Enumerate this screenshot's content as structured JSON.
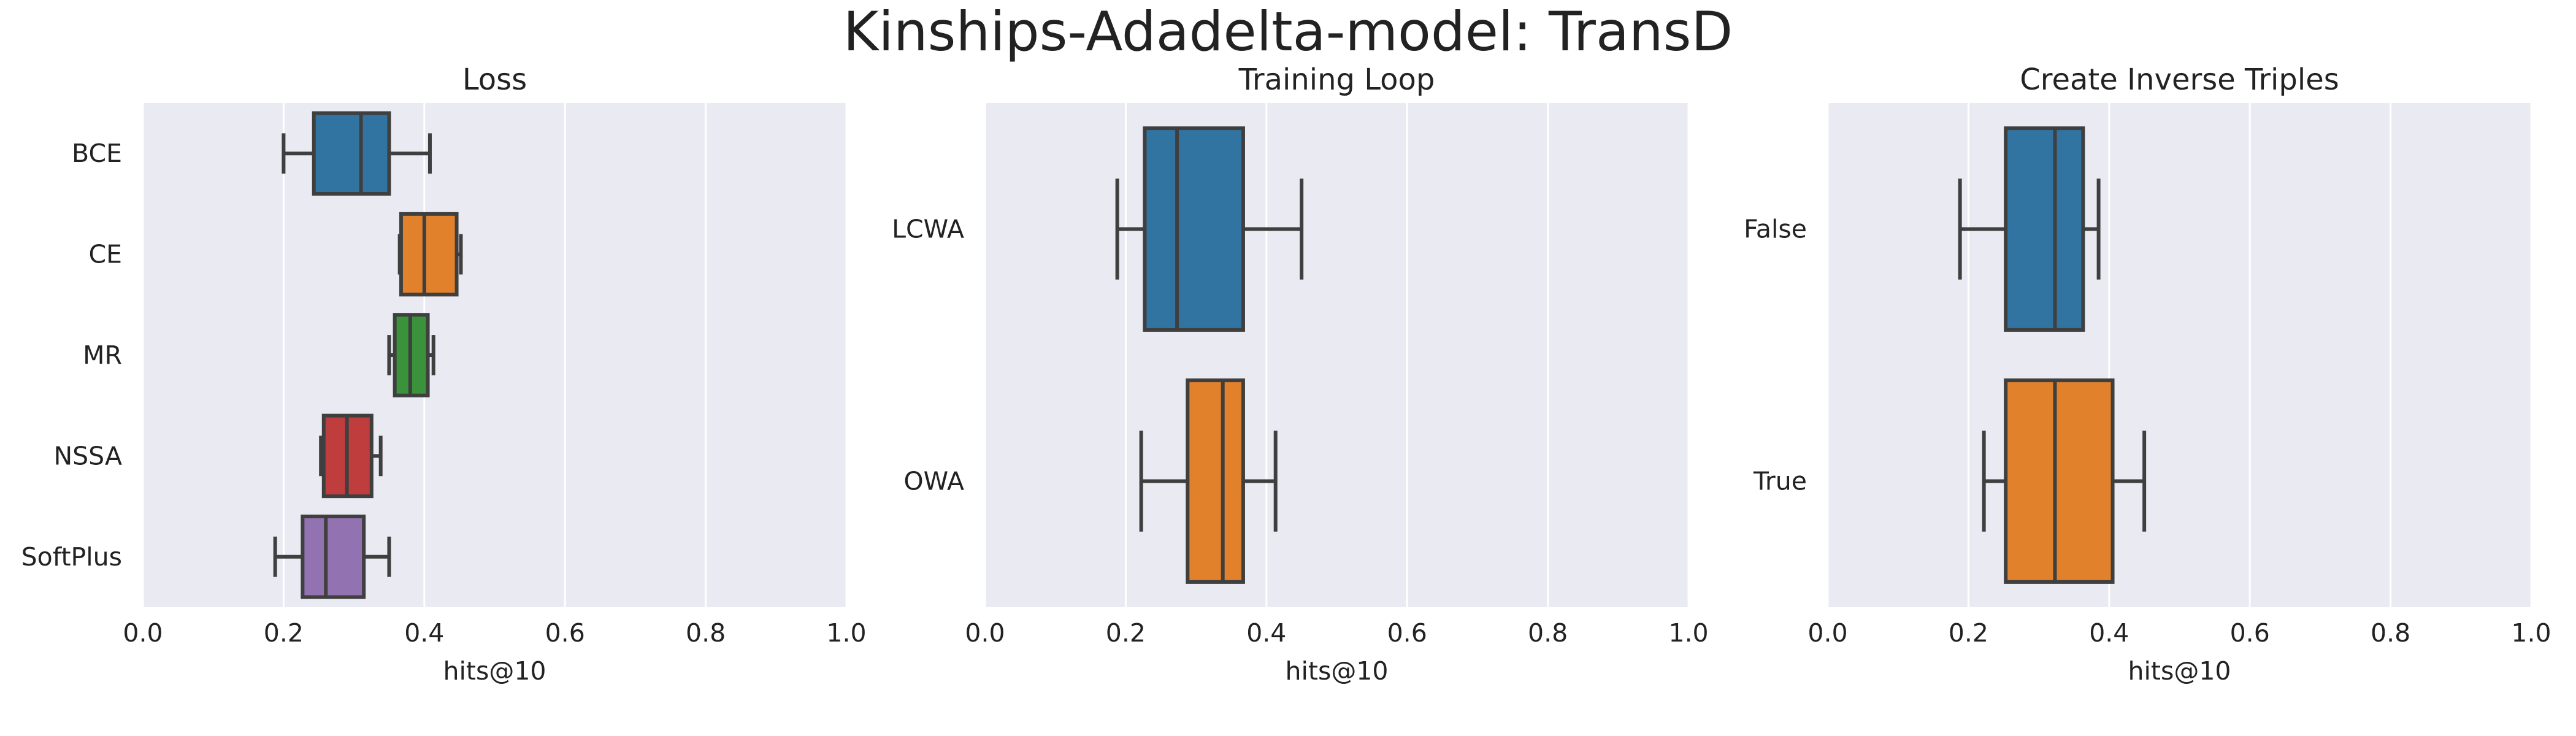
{
  "title": "Kinships-Adadelta-model: TransD",
  "chart_data": [
    {
      "type": "box",
      "title": "Loss",
      "xlabel": "hits@10",
      "ylabel": "",
      "xlim": [
        0.0,
        1.0
      ],
      "xticks": [
        "0.0",
        "0.2",
        "0.4",
        "0.6",
        "0.8",
        "1.0"
      ],
      "grid": true,
      "categories": [
        "BCE",
        "CE",
        "MR",
        "NSSA",
        "SoftPlus"
      ],
      "boxes": [
        {
          "category": "BCE",
          "color": "#3274a1",
          "whisker_low": 0.2,
          "q1": 0.243,
          "median": 0.31,
          "q3": 0.35,
          "whisker_high": 0.408
        },
        {
          "category": "CE",
          "color": "#e1812c",
          "whisker_low": 0.365,
          "q1": 0.367,
          "median": 0.4,
          "q3": 0.446,
          "whisker_high": 0.452
        },
        {
          "category": "MR",
          "color": "#3a923a",
          "whisker_low": 0.35,
          "q1": 0.358,
          "median": 0.38,
          "q3": 0.405,
          "whisker_high": 0.413
        },
        {
          "category": "NSSA",
          "color": "#c03d3e",
          "whisker_low": 0.253,
          "q1": 0.257,
          "median": 0.29,
          "q3": 0.325,
          "whisker_high": 0.338
        },
        {
          "category": "SoftPlus",
          "color": "#9372b2",
          "whisker_low": 0.188,
          "q1": 0.227,
          "median": 0.26,
          "q3": 0.314,
          "whisker_high": 0.35
        }
      ]
    },
    {
      "type": "box",
      "title": "Training Loop",
      "xlabel": "hits@10",
      "ylabel": "",
      "xlim": [
        0.0,
        1.0
      ],
      "xticks": [
        "0.0",
        "0.2",
        "0.4",
        "0.6",
        "0.8",
        "1.0"
      ],
      "grid": true,
      "categories": [
        "LCWA",
        "OWA"
      ],
      "boxes": [
        {
          "category": "LCWA",
          "color": "#3274a1",
          "whisker_low": 0.188,
          "q1": 0.227,
          "median": 0.273,
          "q3": 0.367,
          "whisker_high": 0.45
        },
        {
          "category": "OWA",
          "color": "#e1812c",
          "whisker_low": 0.222,
          "q1": 0.288,
          "median": 0.338,
          "q3": 0.367,
          "whisker_high": 0.413
        }
      ]
    },
    {
      "type": "box",
      "title": "Create Inverse Triples",
      "xlabel": "hits@10",
      "ylabel": "",
      "xlim": [
        0.0,
        1.0
      ],
      "xticks": [
        "0.0",
        "0.2",
        "0.4",
        "0.6",
        "0.8",
        "1.0"
      ],
      "grid": true,
      "categories": [
        "False",
        "True"
      ],
      "boxes": [
        {
          "category": "False",
          "color": "#3274a1",
          "whisker_low": 0.188,
          "q1": 0.253,
          "median": 0.323,
          "q3": 0.363,
          "whisker_high": 0.385
        },
        {
          "category": "True",
          "color": "#e1812c",
          "whisker_low": 0.222,
          "q1": 0.253,
          "median": 0.323,
          "q3": 0.405,
          "whisker_high": 0.45
        }
      ]
    }
  ]
}
